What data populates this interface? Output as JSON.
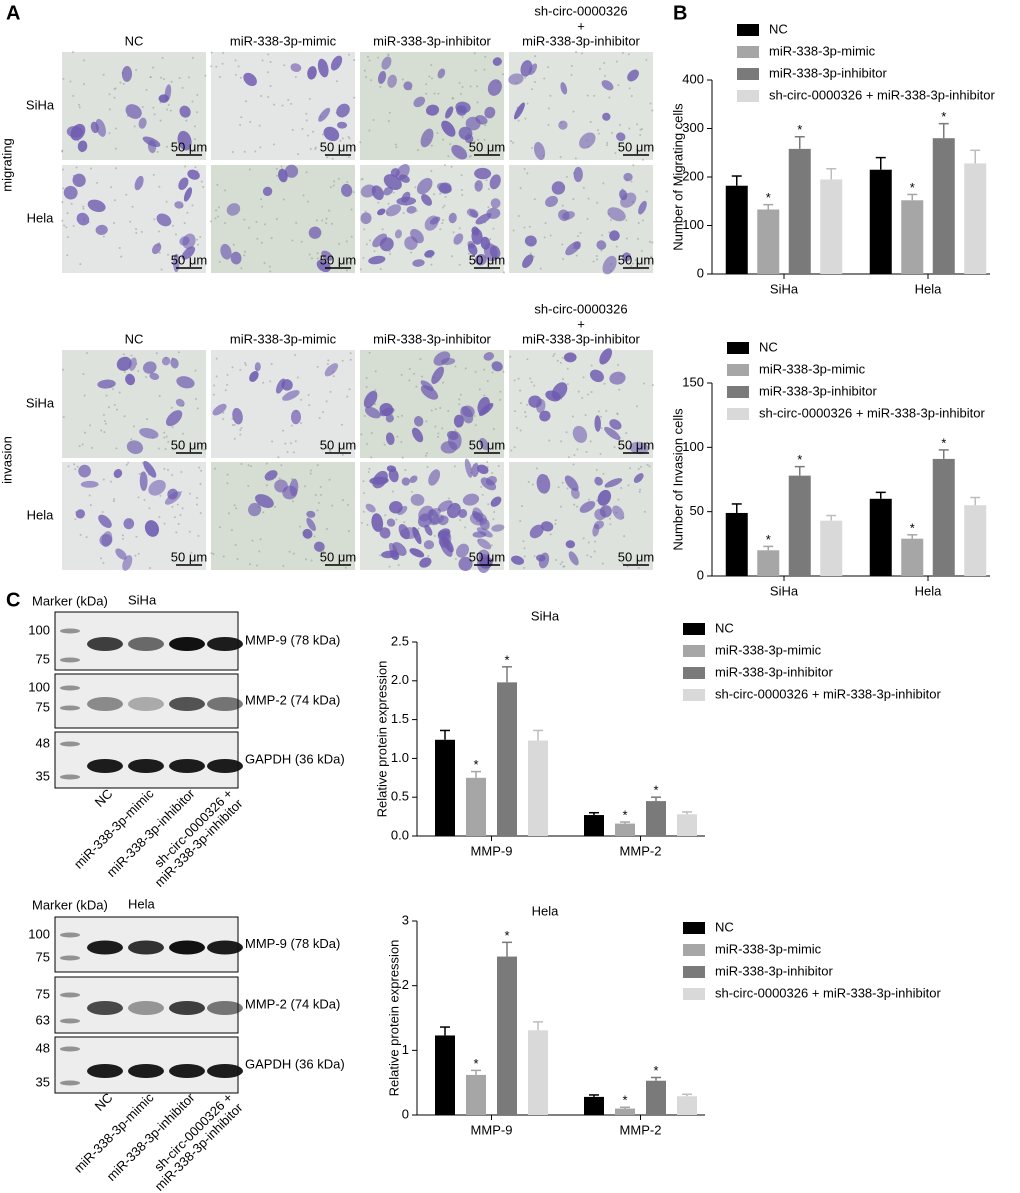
{
  "panel_labels": [
    "A",
    "B",
    "C"
  ],
  "micrographs": [
    {
      "condition": "migrating",
      "columns": [
        [
          "NC"
        ],
        [
          "miR-338-3p-mimic"
        ],
        [
          "miR-338-3p-inhibitor"
        ],
        [
          "sh-circ-0000326",
          "+",
          "miR-338-3p-inhibitor"
        ]
      ],
      "rows": [
        "SiHa",
        "Hela"
      ],
      "scale_bar": "50 μm"
    },
    {
      "condition": "invasion",
      "columns": [
        [
          "NC"
        ],
        [
          "miR-338-3p-mimic"
        ],
        [
          "miR-338-3p-inhibitor"
        ],
        [
          "sh-circ-0000326",
          "+",
          "miR-338-3p-inhibitor"
        ]
      ],
      "rows": [
        "SiHa",
        "Hela"
      ],
      "scale_bar": "50 μm"
    }
  ],
  "blots": [
    {
      "header": "Marker (kDa)",
      "cell_line": "SiHa",
      "panels": [
        {
          "label": "MMP-9 (78 kDa)",
          "markers": [
            100,
            75
          ]
        },
        {
          "label": "MMP-2 (74 kDa)",
          "markers": [
            100,
            75
          ]
        },
        {
          "label": "GAPDH (36 kDa)",
          "markers": [
            48,
            35
          ]
        }
      ],
      "lanes": [
        [
          "NC"
        ],
        [
          "miR-338-3p-mimic"
        ],
        [
          "miR-338-3p-inhibitor"
        ],
        [
          "sh-circ-0000326 +",
          "miR-338-3p-inhibitor"
        ]
      ]
    },
    {
      "header": "Marker (kDa)",
      "cell_line": "Hela",
      "panels": [
        {
          "label": "MMP-9 (78 kDa)",
          "markers": [
            100,
            75
          ]
        },
        {
          "label": "MMP-2 (74 kDa)",
          "markers": [
            75,
            63
          ]
        },
        {
          "label": "GAPDH (36 kDa)",
          "markers": [
            48,
            35
          ]
        }
      ],
      "lanes": [
        [
          "NC"
        ],
        [
          "miR-338-3p-mimic"
        ],
        [
          "miR-338-3p-inhibitor"
        ],
        [
          "sh-circ-0000326 +",
          "miR-338-3p-inhibitor"
        ]
      ]
    }
  ],
  "chart_data": [
    {
      "type": "bar",
      "y_label": "Number of Migrating cells",
      "categories": [
        "SiHa",
        "Hela"
      ],
      "ylim": [
        0,
        400
      ],
      "yticks": [
        0,
        100,
        200,
        300,
        400
      ],
      "series": [
        {
          "name": "NC",
          "color": "#000000",
          "values": [
            182,
            215
          ],
          "errors": [
            20,
            25
          ]
        },
        {
          "name": "miR-338-3p-mimic",
          "color": "#a6a6a6",
          "values": [
            133,
            152
          ],
          "errors": [
            10,
            12
          ],
          "marker": "*"
        },
        {
          "name": "miR-338-3p-inhibitor",
          "color": "#7a7a7a",
          "values": [
            258,
            280
          ],
          "errors": [
            25,
            30
          ],
          "marker": "*"
        },
        {
          "name": "sh-circ-0000326 + miR-338-3p-inhibitor",
          "color": "#d9d9d9",
          "values": [
            195,
            228
          ],
          "errors": [
            22,
            27
          ]
        }
      ]
    },
    {
      "type": "bar",
      "y_label": "Number of Invasion cells",
      "categories": [
        "SiHa",
        "Hela"
      ],
      "ylim": [
        0,
        150
      ],
      "yticks": [
        0,
        50,
        100,
        150
      ],
      "series": [
        {
          "name": "NC",
          "color": "#000000",
          "values": [
            49,
            60
          ],
          "errors": [
            7,
            5
          ]
        },
        {
          "name": "miR-338-3p-mimic",
          "color": "#a6a6a6",
          "values": [
            20,
            29
          ],
          "errors": [
            3,
            3
          ],
          "marker": "*"
        },
        {
          "name": "miR-338-3p-inhibitor",
          "color": "#7a7a7a",
          "values": [
            78,
            91
          ],
          "errors": [
            7,
            7
          ],
          "marker": "*"
        },
        {
          "name": "sh-circ-0000326 + miR-338-3p-inhibitor",
          "color": "#d9d9d9",
          "values": [
            43,
            55
          ],
          "errors": [
            4,
            6
          ]
        }
      ]
    },
    {
      "type": "bar",
      "title": "SiHa",
      "y_label": "Relative protein expression",
      "categories": [
        "MMP-9",
        "MMP-2"
      ],
      "ylim": [
        0,
        2.5
      ],
      "yticks": [
        {
          "value": 0,
          "label": "0.0"
        },
        0.5,
        {
          "value": 1,
          "label": "1.0"
        },
        1.5,
        {
          "value": 2,
          "label": "2.0"
        },
        2.5
      ],
      "series": [
        {
          "name": "NC",
          "color": "#000000",
          "values": [
            1.24,
            0.27
          ],
          "errors": [
            0.12,
            0.03
          ]
        },
        {
          "name": "miR-338-3p-mimic",
          "color": "#a6a6a6",
          "values": [
            0.75,
            0.16
          ],
          "errors": [
            0.08,
            0.02
          ],
          "marker": "*"
        },
        {
          "name": "miR-338-3p-inhibitor",
          "color": "#7a7a7a",
          "values": [
            1.98,
            0.45
          ],
          "errors": [
            0.2,
            0.05
          ],
          "marker": "*"
        },
        {
          "name": "sh-circ-0000326 + miR-338-3p-inhibitor",
          "color": "#d9d9d9",
          "values": [
            1.23,
            0.28
          ],
          "errors": [
            0.13,
            0.03
          ]
        }
      ]
    },
    {
      "type": "bar",
      "title": "Hela",
      "y_label": "Relative protein expression",
      "categories": [
        "MMP-9",
        "MMP-2"
      ],
      "ylim": [
        0,
        3
      ],
      "yticks": [
        0,
        1,
        2,
        3
      ],
      "series": [
        {
          "name": "NC",
          "color": "#000000",
          "values": [
            1.23,
            0.28
          ],
          "errors": [
            0.13,
            0.03
          ]
        },
        {
          "name": "miR-338-3p-mimic",
          "color": "#a6a6a6",
          "values": [
            0.62,
            0.1
          ],
          "errors": [
            0.07,
            0.02
          ],
          "marker": "*"
        },
        {
          "name": "miR-338-3p-inhibitor",
          "color": "#7a7a7a",
          "values": [
            2.45,
            0.53
          ],
          "errors": [
            0.22,
            0.05
          ],
          "marker": "*"
        },
        {
          "name": "sh-circ-0000326 + miR-338-3p-inhibitor",
          "color": "#d9d9d9",
          "values": [
            1.31,
            0.29
          ],
          "errors": [
            0.13,
            0.03
          ]
        }
      ]
    }
  ]
}
